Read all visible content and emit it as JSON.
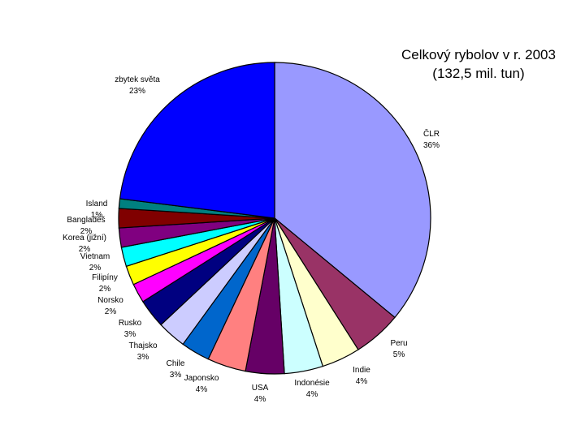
{
  "chart_data": {
    "type": "pie",
    "title_line1": "Celkový rybolov v r. 2003",
    "title_line2": "(132,5 mil. tun)",
    "slices": [
      {
        "label": "ČLR",
        "pct_label": "36%",
        "value": 36,
        "color": "#9999FF"
      },
      {
        "label": "Peru",
        "pct_label": "5%",
        "value": 5,
        "color": "#993366"
      },
      {
        "label": "Indie",
        "pct_label": "4%",
        "value": 4,
        "color": "#FFFFCC"
      },
      {
        "label": "Indonésie",
        "pct_label": "4%",
        "value": 4,
        "color": "#CCFFFF"
      },
      {
        "label": "USA",
        "pct_label": "4%",
        "value": 4,
        "color": "#660066"
      },
      {
        "label": "Japonsko",
        "pct_label": "4%",
        "value": 4,
        "color": "#FF8080"
      },
      {
        "label": "Chile",
        "pct_label": "3%",
        "value": 3,
        "color": "#0066CC"
      },
      {
        "label": "Thajsko",
        "pct_label": "3%",
        "value": 3,
        "color": "#CCCCFF"
      },
      {
        "label": "Rusko",
        "pct_label": "3%",
        "value": 3,
        "color": "#000080"
      },
      {
        "label": "Norsko",
        "pct_label": "2%",
        "value": 2,
        "color": "#FF00FF"
      },
      {
        "label": "Filipíny",
        "pct_label": "2%",
        "value": 2,
        "color": "#FFFF00"
      },
      {
        "label": "Vietnam",
        "pct_label": "2%",
        "value": 2,
        "color": "#00FFFF"
      },
      {
        "label": "Korea (jižní)",
        "pct_label": "2%",
        "value": 2,
        "color": "#800080"
      },
      {
        "label": "Bangladéš",
        "pct_label": "2%",
        "value": 2,
        "color": "#800000"
      },
      {
        "label": "Island",
        "pct_label": "1%",
        "value": 1,
        "color": "#008080"
      },
      {
        "label": "zbytek světa",
        "pct_label": "23%",
        "value": 23,
        "color": "#0000FF"
      }
    ]
  }
}
